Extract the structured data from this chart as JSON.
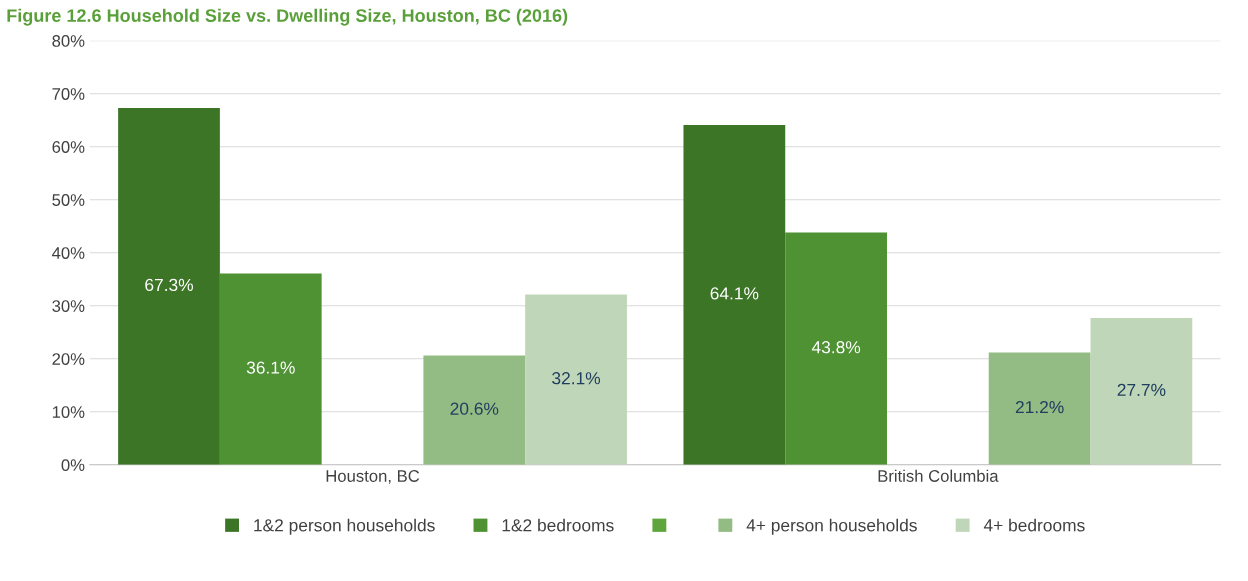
{
  "chart_data": {
    "type": "bar",
    "title": "Figure 12.6 Household Size vs. Dwelling Size, Houston, BC (2016)",
    "categories": [
      "Houston, BC",
      "British Columbia"
    ],
    "series": [
      {
        "name": "1&2 person households",
        "color": "#3d7527",
        "values": [
          67.3,
          64.1
        ],
        "value_labels": [
          "67.3%",
          "64.1%"
        ]
      },
      {
        "name": "1&2 bedrooms",
        "color": "#4e9233",
        "values": [
          36.1,
          43.8
        ],
        "value_labels": [
          "36.1%",
          "43.8%"
        ]
      },
      {
        "color": "#5ea63c",
        "values": [
          null,
          null
        ]
      },
      {
        "name": "4+ person households",
        "color": "#93bb84",
        "values": [
          20.6,
          21.2
        ],
        "value_labels": [
          "20.6%",
          "21.2%"
        ]
      },
      {
        "name": "4+ bedrooms",
        "color": "#c0d6b8",
        "values": [
          32.1,
          27.7
        ],
        "value_labels": [
          "32.1%",
          "27.7%"
        ]
      }
    ],
    "ylim": [
      0,
      80
    ],
    "yticks": [
      {
        "value": 0,
        "label": "0%"
      },
      {
        "value": 10,
        "label": "10%"
      },
      {
        "value": 20,
        "label": "20%"
      },
      {
        "value": 30,
        "label": "30%"
      },
      {
        "value": 40,
        "label": "40%"
      },
      {
        "value": 50,
        "label": "50%"
      },
      {
        "value": 60,
        "label": "60%"
      },
      {
        "value": 70,
        "label": "70%"
      },
      {
        "value": 80,
        "label": "80%"
      }
    ],
    "grid": "y",
    "legend": "bottom"
  }
}
